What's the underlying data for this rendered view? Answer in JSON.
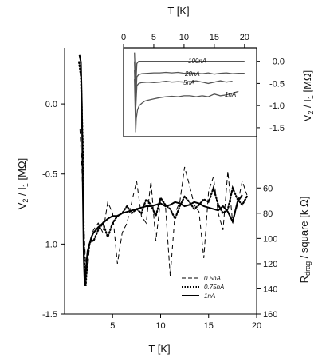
{
  "chart_data": [
    {
      "type": "line",
      "name": "main",
      "xlabel": "T [K]",
      "ylabel": "V_2 / I_1 [MΩ]",
      "y2label": "R_drag / square [k Ω]",
      "xlim": [
        0,
        20
      ],
      "ylim": [
        -1.5,
        0.4
      ],
      "x_ticks": [
        5,
        10,
        15,
        20
      ],
      "y_ticks": [
        0.0,
        -0.5,
        -1.0,
        -1.5
      ],
      "y_tick_labels": [
        "0.0",
        "-0.5",
        "-1.0",
        "-1.5"
      ],
      "y2_ticks": [
        60,
        80,
        100,
        120,
        140,
        160
      ],
      "legend_position": "bottom-right",
      "series": [
        {
          "name": "0.5nA",
          "style": "dashed",
          "x": [
            1.6,
            1.8,
            2.0,
            2.2,
            2.4,
            2.6,
            2.8,
            3.0,
            3.5,
            4.0,
            4.5,
            5.0,
            5.5,
            6.0,
            6.5,
            7.0,
            7.5,
            8.0,
            8.5,
            9.0,
            9.5,
            10.0,
            10.5,
            11.0,
            11.5,
            12.0,
            12.5,
            13.0,
            13.5,
            14.0,
            14.5,
            15.0,
            15.5,
            16.0,
            16.5,
            17.0,
            17.5,
            18.0,
            18.5,
            19.0
          ],
          "y": [
            -0.18,
            -0.45,
            -0.85,
            -1.15,
            -1.2,
            -1.0,
            -0.95,
            -0.9,
            -0.85,
            -0.92,
            -0.7,
            -0.78,
            -1.14,
            -0.92,
            -0.85,
            -0.7,
            -0.55,
            -0.8,
            -0.85,
            -0.55,
            -0.98,
            -0.68,
            -0.72,
            -1.23,
            -0.78,
            -0.7,
            -0.45,
            -0.58,
            -0.72,
            -0.77,
            -1.1,
            -0.62,
            -0.52,
            -0.78,
            -0.9,
            -0.48,
            -0.85,
            -0.72,
            -0.55,
            -0.65
          ]
        },
        {
          "name": "0.75nA",
          "style": "dotted",
          "x": [
            1.5,
            1.7,
            1.9,
            2.0,
            2.1,
            2.2,
            2.4,
            2.6,
            2.8,
            3.0,
            3.5,
            4.0,
            4.5,
            5.0,
            5.5,
            6.0,
            6.5,
            7.0,
            7.5,
            8.0,
            8.5,
            9.0,
            9.5,
            10.0,
            10.5,
            11.0,
            11.5,
            12.0,
            12.5,
            13.0,
            13.5,
            14.0,
            14.5,
            15.0,
            15.5,
            16.0,
            16.5,
            17.0,
            17.5,
            18.0,
            18.5,
            19.0
          ],
          "y": [
            0.3,
            0.2,
            -0.3,
            -0.9,
            -1.25,
            -1.3,
            -1.1,
            -1.0,
            -0.97,
            -0.98,
            -0.9,
            -0.85,
            -0.95,
            -0.85,
            -0.8,
            -0.78,
            -0.73,
            -0.78,
            -0.75,
            -0.78,
            -0.68,
            -0.72,
            -0.8,
            -0.67,
            -0.72,
            -0.75,
            -0.82,
            -0.73,
            -0.66,
            -0.7,
            -0.75,
            -0.72,
            -0.68,
            -0.7,
            -0.6,
            -0.72,
            -0.78,
            -0.75,
            -0.6,
            -0.68,
            -0.72,
            -0.66
          ]
        },
        {
          "name": "1nA",
          "style": "solid",
          "x": [
            1.55,
            1.7,
            1.8,
            1.9,
            2.0,
            2.1,
            2.2,
            2.3,
            2.4,
            2.6,
            2.8,
            3.0,
            3.5,
            4.0,
            4.5,
            5.0,
            5.5,
            6.0,
            6.5,
            7.0,
            7.5,
            8.0,
            8.5,
            9.0,
            9.5,
            10.0,
            10.5,
            11.0,
            11.5,
            12.0,
            12.5,
            13.0,
            13.5,
            14.0,
            14.5,
            15.0,
            15.5,
            16.0,
            16.5,
            17.0,
            17.5,
            18.0,
            18.5
          ],
          "y": [
            0.35,
            0.3,
            0.0,
            -0.6,
            -1.1,
            -1.3,
            -1.2,
            -1.12,
            -1.05,
            -1.0,
            -0.95,
            -0.92,
            -0.88,
            -0.85,
            -0.82,
            -0.8,
            -0.8,
            -0.78,
            -0.77,
            -0.76,
            -0.75,
            -0.74,
            -0.73,
            -0.73,
            -0.72,
            -0.71,
            -0.73,
            -0.72,
            -0.7,
            -0.71,
            -0.73,
            -0.72,
            -0.7,
            -0.71,
            -0.73,
            -0.74,
            -0.75,
            -0.76,
            -0.73,
            -0.77,
            -0.84,
            -0.7,
            -0.65
          ]
        }
      ]
    },
    {
      "type": "line",
      "name": "inset",
      "xlabel": "T [K]",
      "ylabel": "V_2 / I_1 [MΩ]",
      "xlim": [
        0,
        22
      ],
      "ylim": [
        -1.7,
        0.3
      ],
      "x_ticks": [
        0,
        5,
        10,
        15,
        20
      ],
      "y_ticks": [
        0.0,
        -0.5,
        -1.0,
        -1.5
      ],
      "y_tick_labels": [
        "0.0",
        "-0.5",
        "-1.0",
        "-1.5"
      ],
      "series": [
        {
          "name": "100nA",
          "x": [
            1.8,
            2.0,
            2.2,
            2.5,
            3,
            4,
            5,
            6,
            7,
            8,
            9,
            10,
            11,
            12,
            13,
            14,
            15,
            16,
            17,
            18,
            19,
            20
          ],
          "y": [
            0.2,
            -0.6,
            -0.05,
            0.0,
            0.0,
            0.0,
            0.0,
            0.0,
            0.0,
            0.0,
            0.0,
            0.0,
            0.0,
            0.0,
            0.0,
            0.0,
            0.0,
            0.0,
            0.0,
            0.0,
            0.0,
            0.0
          ]
        },
        {
          "name": "20nA",
          "x": [
            1.8,
            2.0,
            2.2,
            2.5,
            3,
            4,
            5,
            6,
            7,
            8,
            9,
            10,
            11,
            12,
            13,
            14,
            15,
            16,
            17,
            18,
            19,
            20
          ],
          "y": [
            0.0,
            -0.9,
            -0.35,
            -0.3,
            -0.28,
            -0.27,
            -0.26,
            -0.26,
            -0.25,
            -0.26,
            -0.25,
            -0.27,
            -0.26,
            -0.27,
            -0.28,
            -0.26,
            -0.29,
            -0.27,
            -0.26,
            -0.28,
            -0.27,
            -0.27
          ]
        },
        {
          "name": "5nA",
          "x": [
            1.8,
            2.0,
            2.2,
            2.5,
            3,
            4,
            5,
            6,
            7,
            8,
            9,
            10,
            11,
            12,
            13,
            14,
            15,
            16,
            17,
            18
          ],
          "y": [
            -0.2,
            -1.1,
            -0.55,
            -0.5,
            -0.48,
            -0.47,
            -0.48,
            -0.47,
            -0.45,
            -0.47,
            -0.46,
            -0.47,
            -0.46,
            -0.44,
            -0.47,
            -0.5,
            -0.47,
            -0.44,
            -0.47,
            -0.45
          ]
        },
        {
          "name": "1nA",
          "x": [
            1.8,
            2.0,
            2.1,
            2.3,
            2.6,
            3,
            3.5,
            4,
            5,
            6,
            7,
            8,
            9,
            10,
            11,
            12,
            13,
            14,
            15,
            16,
            17,
            18,
            19
          ],
          "y": [
            -0.4,
            -1.6,
            -1.3,
            -1.1,
            -1.0,
            -0.95,
            -0.9,
            -0.88,
            -0.85,
            -0.82,
            -0.8,
            -0.79,
            -0.8,
            -0.78,
            -0.78,
            -0.8,
            -0.78,
            -0.8,
            -0.74,
            -0.78,
            -0.76,
            -0.72,
            -0.68
          ]
        }
      ]
    }
  ]
}
